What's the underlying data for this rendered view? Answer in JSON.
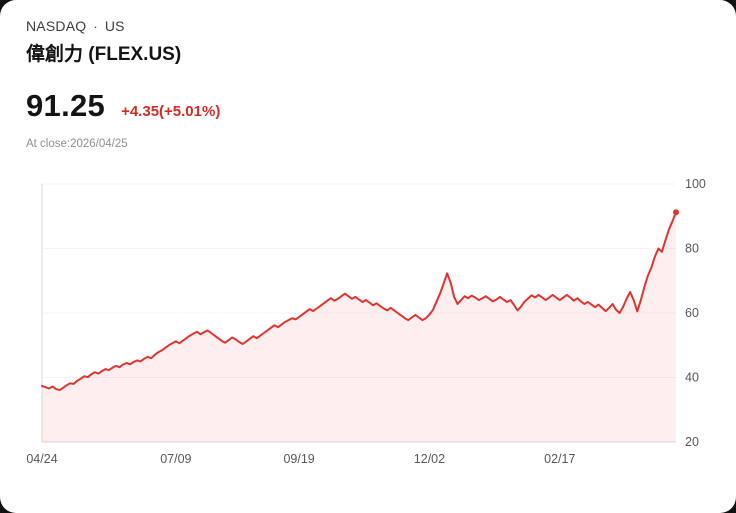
{
  "header": {
    "exchange": "NASDAQ",
    "separator": "·",
    "region": "US",
    "stock_name": "偉創力 (FLEX.US)"
  },
  "quote": {
    "price": "91.25",
    "change": "+4.35(+5.01%)",
    "change_color": "#d42b25",
    "close_time": "At close:2026/04/25"
  },
  "chart_data": {
    "type": "area",
    "title": "FLEX.US price history, one year to 2026/04/25",
    "xlabel": "",
    "ylabel": "",
    "ylim": [
      20,
      100
    ],
    "y_ticks": [
      20,
      40,
      60,
      80,
      100
    ],
    "x_tick_labels": [
      "04/24",
      "07/09",
      "09/19",
      "12/02",
      "02/17"
    ],
    "x_tick_indices": [
      0,
      38,
      73,
      110,
      147
    ],
    "legend": "none",
    "grid": "faint-horizontal",
    "line_color": "#e0342f",
    "fill_color": "rgba(224,52,47,0.08)",
    "axis_color": "#d9d9d9",
    "grid_color": "#f3f3f3",
    "tick_label_color": "#595959",
    "last_value": 91.25,
    "values": [
      37.4,
      37.0,
      36.6,
      37.2,
      36.4,
      36.1,
      36.8,
      37.6,
      38.2,
      38.0,
      39.0,
      39.6,
      40.4,
      40.1,
      41.0,
      41.6,
      41.2,
      42.0,
      42.6,
      42.3,
      43.0,
      43.6,
      43.2,
      44.0,
      44.5,
      44.1,
      44.8,
      45.3,
      45.0,
      45.8,
      46.4,
      46.0,
      47.0,
      47.8,
      48.4,
      49.2,
      50.0,
      50.6,
      51.2,
      50.6,
      51.4,
      52.2,
      53.0,
      53.6,
      54.2,
      53.4,
      54.0,
      54.6,
      53.8,
      53.0,
      52.2,
      51.4,
      50.8,
      51.6,
      52.4,
      51.8,
      51.0,
      50.4,
      51.2,
      52.0,
      52.8,
      52.2,
      53.0,
      53.8,
      54.6,
      55.4,
      56.2,
      55.6,
      56.4,
      57.2,
      57.8,
      58.4,
      58.0,
      58.8,
      59.6,
      60.4,
      61.2,
      60.6,
      61.4,
      62.2,
      63.0,
      63.8,
      64.6,
      63.8,
      64.4,
      65.2,
      66.0,
      65.2,
      64.4,
      65.0,
      64.2,
      63.4,
      64.0,
      63.2,
      62.4,
      63.0,
      62.2,
      61.4,
      60.8,
      61.6,
      60.8,
      60.0,
      59.2,
      58.4,
      57.8,
      58.6,
      59.4,
      58.6,
      57.8,
      58.4,
      59.5,
      61.0,
      63.5,
      66.0,
      69.0,
      72.3,
      69.5,
      65.0,
      62.8,
      64.0,
      65.2,
      64.6,
      65.4,
      64.8,
      64.0,
      64.6,
      65.2,
      64.4,
      63.6,
      64.2,
      65.0,
      64.2,
      63.4,
      64.0,
      62.5,
      60.8,
      62.0,
      63.5,
      64.5,
      65.5,
      64.8,
      65.6,
      64.8,
      64.0,
      64.8,
      65.6,
      64.8,
      64.0,
      64.8,
      65.6,
      64.8,
      63.8,
      64.6,
      63.6,
      62.8,
      63.4,
      62.6,
      61.8,
      62.6,
      61.6,
      60.6,
      61.6,
      62.8,
      61.0,
      60.0,
      62.0,
      64.5,
      66.5,
      64.0,
      60.5,
      64.0,
      68.0,
      71.5,
      74.0,
      77.5,
      80.0,
      79.0,
      82.5,
      86.0,
      88.5,
      91.25
    ]
  }
}
